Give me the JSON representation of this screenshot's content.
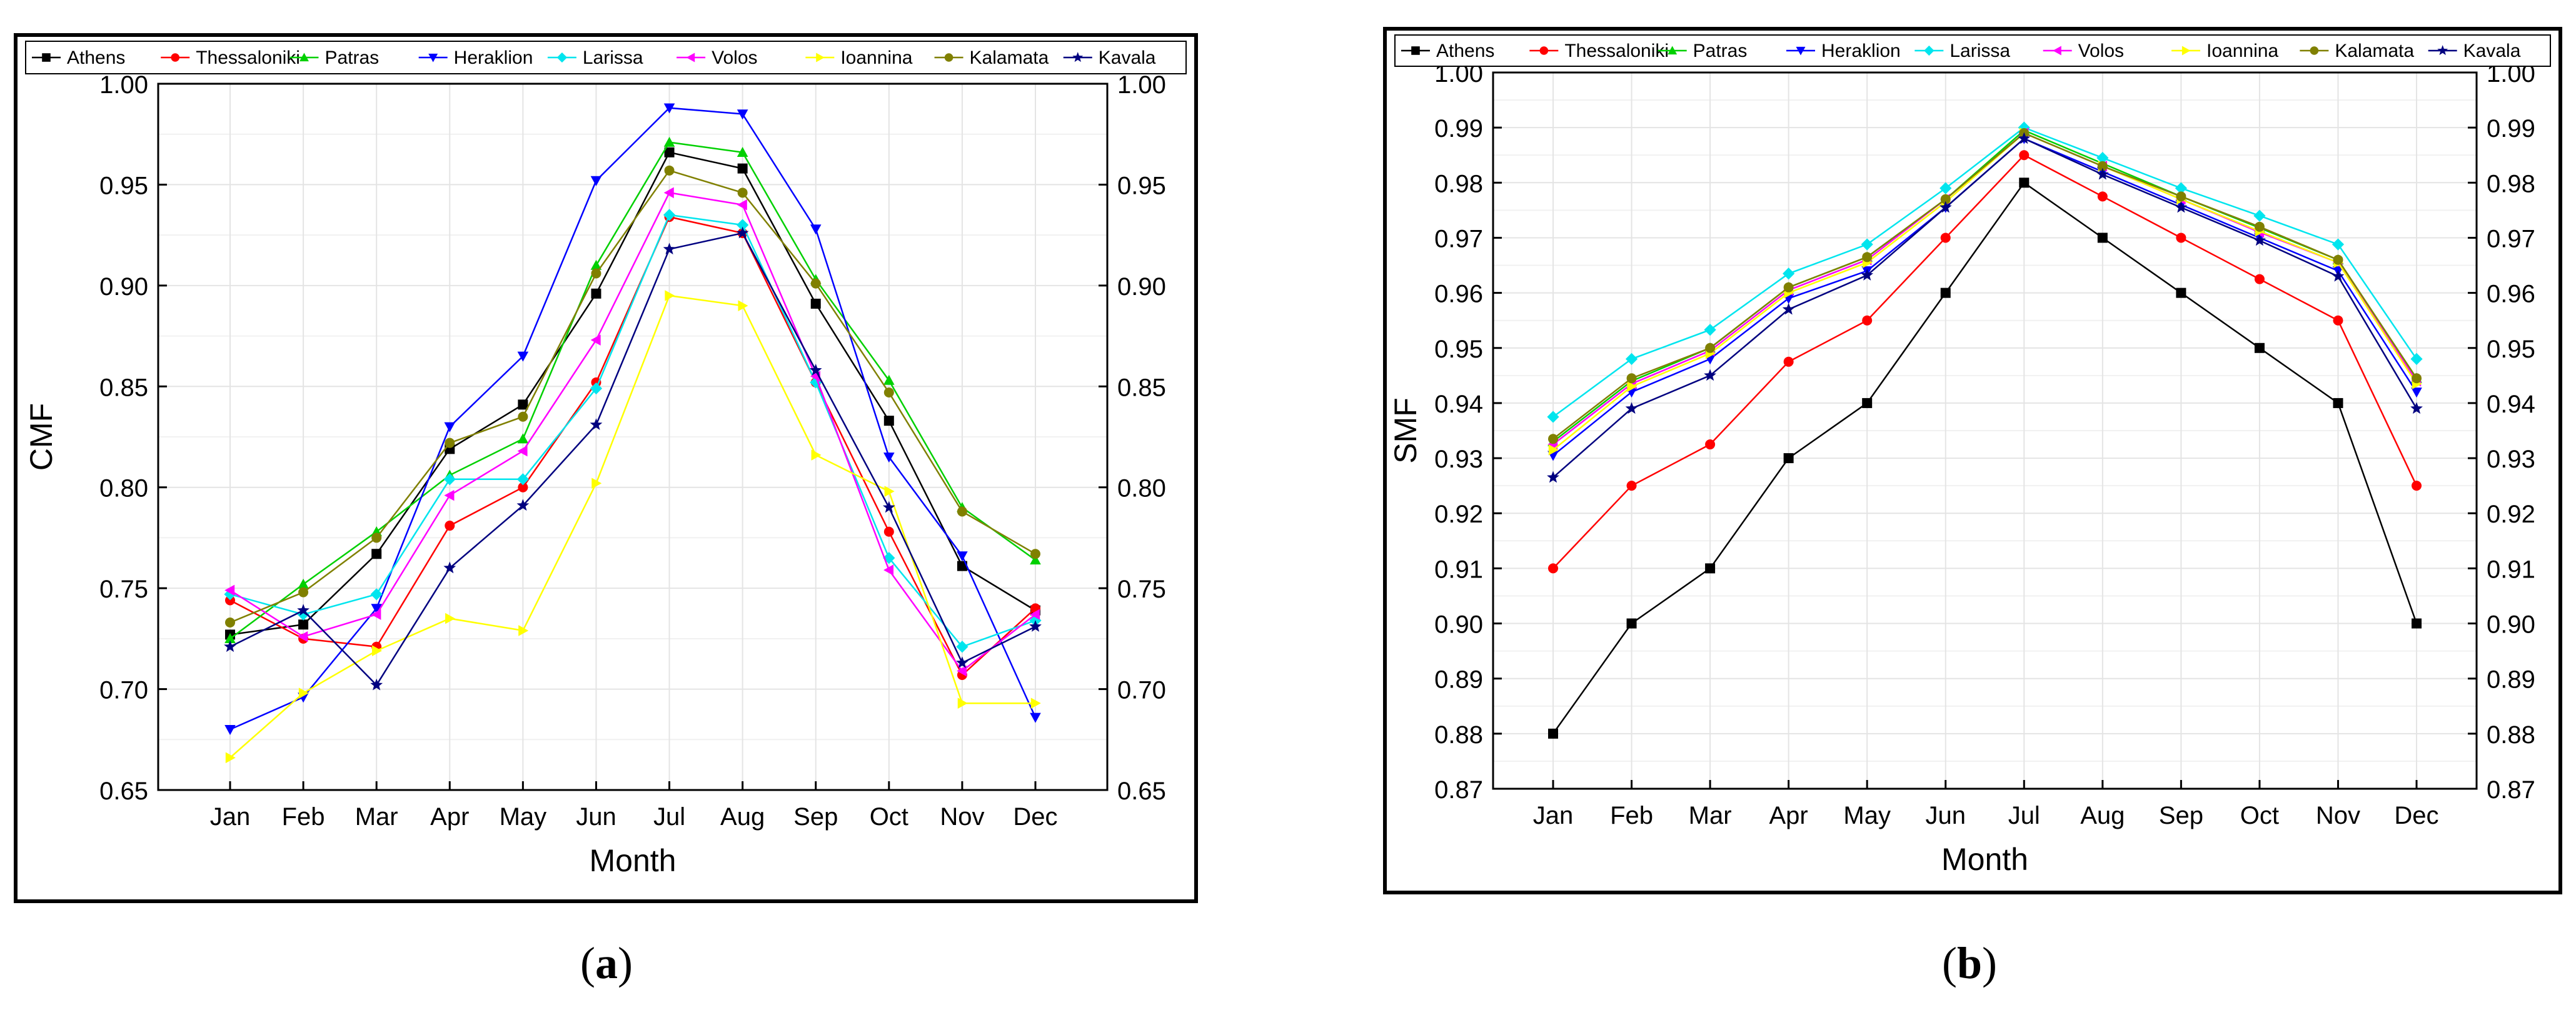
{
  "captions": {
    "a": "a",
    "b": "b"
  },
  "chart_data": [
    {
      "type": "line",
      "panel": "a",
      "title": "",
      "xlabel": "Month",
      "ylabel": "CMF",
      "ylim": [
        0.65,
        1.0
      ],
      "yticks": [
        "0.65",
        "0.70",
        "0.75",
        "0.80",
        "0.85",
        "0.90",
        "0.95",
        "1.00"
      ],
      "right_axis": true,
      "grid": true,
      "legend": "top",
      "categories": [
        "Jan",
        "Feb",
        "Mar",
        "Apr",
        "May",
        "Jun",
        "Jul",
        "Aug",
        "Sep",
        "Oct",
        "Nov",
        "Dec"
      ],
      "series": [
        {
          "name": "Athens",
          "color": "#000000",
          "marker": "square",
          "values": [
            0.727,
            0.732,
            0.767,
            0.819,
            0.841,
            0.896,
            0.966,
            0.958,
            0.891,
            0.833,
            0.761,
            0.739
          ]
        },
        {
          "name": "Thessaloniki",
          "color": "#ff0000",
          "marker": "circle",
          "values": [
            0.744,
            0.725,
            0.721,
            0.781,
            0.8,
            0.852,
            0.934,
            0.926,
            0.852,
            0.778,
            0.707,
            0.74
          ]
        },
        {
          "name": "Patras",
          "color": "#00d000",
          "marker": "triangle-up",
          "values": [
            0.725,
            0.752,
            0.778,
            0.806,
            0.824,
            0.91,
            0.971,
            0.966,
            0.903,
            0.853,
            0.79,
            0.764
          ]
        },
        {
          "name": "Heraklion",
          "color": "#0000ff",
          "marker": "triangle-down",
          "values": [
            0.68,
            0.696,
            0.74,
            0.83,
            0.865,
            0.952,
            0.988,
            0.985,
            0.928,
            0.815,
            0.766,
            0.686
          ]
        },
        {
          "name": "Larissa",
          "color": "#00e5ee",
          "marker": "diamond",
          "values": [
            0.747,
            0.737,
            0.747,
            0.804,
            0.804,
            0.849,
            0.935,
            0.93,
            0.852,
            0.765,
            0.721,
            0.734
          ]
        },
        {
          "name": "Volos",
          "color": "#ff00ff",
          "marker": "triangle-left",
          "values": [
            0.749,
            0.726,
            0.737,
            0.796,
            0.818,
            0.873,
            0.946,
            0.94,
            0.855,
            0.759,
            0.709,
            0.737
          ]
        },
        {
          "name": "Ioannina",
          "color": "#ffff00",
          "marker": "triangle-right",
          "values": [
            0.666,
            0.698,
            0.719,
            0.735,
            0.729,
            0.802,
            0.895,
            0.89,
            0.816,
            0.798,
            0.693,
            0.693
          ]
        },
        {
          "name": "Kalamata",
          "color": "#808000",
          "marker": "circle",
          "values": [
            0.733,
            0.748,
            0.775,
            0.822,
            0.835,
            0.906,
            0.957,
            0.946,
            0.901,
            0.847,
            0.788,
            0.767
          ]
        },
        {
          "name": "Kavala",
          "color": "#000080",
          "marker": "star",
          "values": [
            0.721,
            0.739,
            0.702,
            0.76,
            0.791,
            0.831,
            0.918,
            0.926,
            0.858,
            0.79,
            0.713,
            0.731
          ]
        }
      ]
    },
    {
      "type": "line",
      "panel": "b",
      "title": "",
      "xlabel": "Month",
      "ylabel": "SMF",
      "ylim": [
        0.87,
        1.0
      ],
      "yticks": [
        "0.87",
        "0.88",
        "0.89",
        "0.90",
        "0.91",
        "0.92",
        "0.93",
        "0.94",
        "0.95",
        "0.96",
        "0.97",
        "0.98",
        "0.99",
        "1.00"
      ],
      "right_axis": true,
      "grid": true,
      "legend": "top",
      "categories": [
        "Jan",
        "Feb",
        "Mar",
        "Apr",
        "May",
        "Jun",
        "Jul",
        "Aug",
        "Sep",
        "Oct",
        "Nov",
        "Dec"
      ],
      "series": [
        {
          "name": "Athens",
          "color": "#000000",
          "marker": "square",
          "values": [
            0.88,
            0.9,
            0.91,
            0.93,
            0.94,
            0.96,
            0.98,
            0.97,
            0.96,
            0.95,
            0.94,
            0.9
          ]
        },
        {
          "name": "Thessaloniki",
          "color": "#ff0000",
          "marker": "circle",
          "values": [
            0.91,
            0.925,
            0.9325,
            0.9475,
            0.955,
            0.97,
            0.985,
            0.9775,
            0.97,
            0.9625,
            0.955,
            0.925
          ]
        },
        {
          "name": "Patras",
          "color": "#00d000",
          "marker": "triangle-up",
          "values": [
            0.933,
            0.944,
            0.95,
            0.961,
            0.9665,
            0.977,
            0.9895,
            0.9835,
            0.9775,
            0.9718,
            0.966,
            0.9445
          ]
        },
        {
          "name": "Heraklion",
          "color": "#0000ff",
          "marker": "triangle-down",
          "values": [
            0.9305,
            0.942,
            0.948,
            0.959,
            0.964,
            0.9755,
            0.988,
            0.982,
            0.976,
            0.97,
            0.964,
            0.942
          ]
        },
        {
          "name": "Larissa",
          "color": "#00e5ee",
          "marker": "diamond",
          "values": [
            0.9375,
            0.948,
            0.9533,
            0.9635,
            0.9688,
            0.979,
            0.99,
            0.9845,
            0.979,
            0.974,
            0.9688,
            0.948
          ]
        },
        {
          "name": "Volos",
          "color": "#ff00ff",
          "marker": "triangle-left",
          "values": [
            0.9325,
            0.9435,
            0.9495,
            0.9605,
            0.966,
            0.977,
            0.989,
            0.983,
            0.977,
            0.971,
            0.9655,
            0.944
          ]
        },
        {
          "name": "Ioannina",
          "color": "#ffff00",
          "marker": "triangle-right",
          "values": [
            0.9315,
            0.943,
            0.949,
            0.96,
            0.9655,
            0.9765,
            0.989,
            0.983,
            0.977,
            0.9712,
            0.9655,
            0.9435
          ]
        },
        {
          "name": "Kalamata",
          "color": "#808000",
          "marker": "circle",
          "values": [
            0.9335,
            0.9445,
            0.95,
            0.961,
            0.9665,
            0.977,
            0.989,
            0.983,
            0.9775,
            0.972,
            0.966,
            0.9445
          ]
        },
        {
          "name": "Kavala",
          "color": "#000080",
          "marker": "star",
          "values": [
            0.9265,
            0.939,
            0.945,
            0.957,
            0.9632,
            0.9755,
            0.988,
            0.9815,
            0.9755,
            0.9695,
            0.963,
            0.939
          ]
        }
      ]
    }
  ]
}
